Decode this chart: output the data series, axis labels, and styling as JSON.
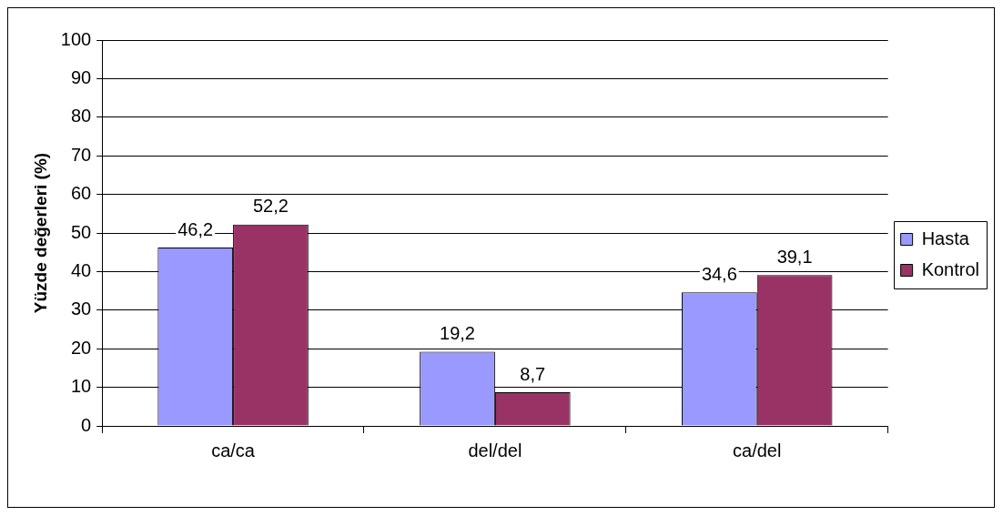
{
  "chart_data": {
    "type": "bar",
    "ylabel": "Yüzde değerleri (%)",
    "categories": [
      "ca/ca",
      "del/del",
      "ca/del"
    ],
    "series": [
      {
        "name": "Hasta",
        "color": "#9999ff",
        "values": [
          46.2,
          19.2,
          34.6
        ],
        "value_labels": [
          "46,2",
          "19,2",
          "34,6"
        ]
      },
      {
        "name": "Kontrol",
        "color": "#993366",
        "values": [
          52.2,
          8.7,
          39.1
        ],
        "value_labels": [
          "52,2",
          "8,7",
          "39,1"
        ]
      }
    ],
    "ylim": [
      0,
      100
    ],
    "yticks": [
      0,
      10,
      20,
      30,
      40,
      50,
      60,
      70,
      80,
      90,
      100
    ],
    "grid": "y",
    "legend": "right"
  }
}
